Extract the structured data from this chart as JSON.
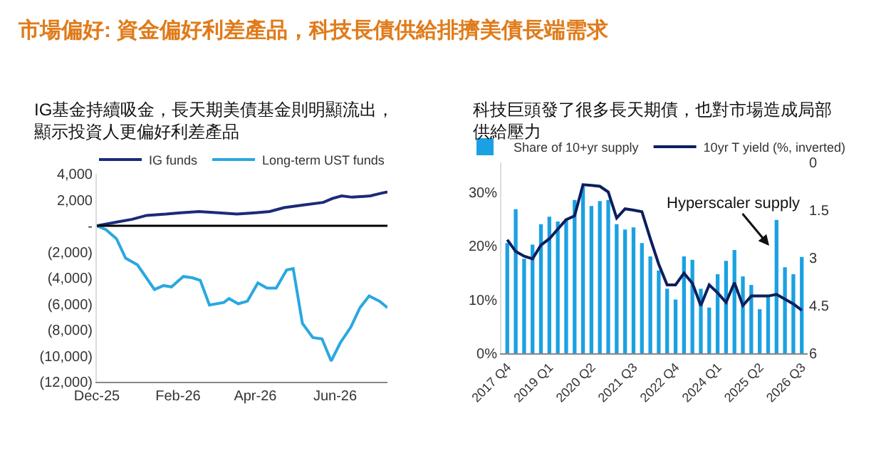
{
  "chart_data": [
    {
      "type": "other",
      "title": "市場偏好: 資金偏好利差產品，科技長債供給排擠美債長端需求"
    },
    {
      "type": "line",
      "title": "IG基金持續吸金，長天期美債基金則明顯流出，顯示投資人更偏好利差產品",
      "legend": "top",
      "xlim": [
        "2025-12-01",
        "2026-07-11"
      ],
      "xticks": [
        {
          "value": "2025-12-01",
          "label": "Dec-25"
        },
        {
          "value": "2026-02-01",
          "label": "Feb-26"
        },
        {
          "value": "2026-04-01",
          "label": "Apr-26"
        },
        {
          "value": "2026-06-01",
          "label": "Jun-26"
        }
      ],
      "ylim": [
        -12000,
        4000
      ],
      "yticks": [
        {
          "value": 4000,
          "label": "4,000"
        },
        {
          "value": 2000,
          "label": "2,000"
        },
        {
          "value": 0,
          "label": "-"
        },
        {
          "value": -2000,
          "label": "(2,000)"
        },
        {
          "value": -4000,
          "label": "(4,000)"
        },
        {
          "value": -6000,
          "label": "(6,000)"
        },
        {
          "value": -8000,
          "label": "(8,000)"
        },
        {
          "value": -10000,
          "label": "(10,000)"
        },
        {
          "value": -12000,
          "label": "(12,000)"
        }
      ],
      "ref_lines": [
        {
          "axis": "y",
          "value": 0,
          "color": "#000000"
        }
      ],
      "series": [
        {
          "name": "IG funds",
          "color": "#1b2a7a",
          "x": [
            "2025-12-01",
            "2025-12-17",
            "2025-12-28",
            "2026-01-08",
            "2026-01-23",
            "2026-02-03",
            "2026-02-17",
            "2026-03-04",
            "2026-03-18",
            "2026-04-01",
            "2026-04-12",
            "2026-04-23",
            "2026-05-08",
            "2026-05-23",
            "2026-05-30",
            "2026-06-06",
            "2026-06-14",
            "2026-06-28",
            "2026-07-06",
            "2026-07-11"
          ],
          "values": [
            0,
            300,
            500,
            800,
            900,
            1000,
            1100,
            1000,
            900,
            1000,
            1100,
            1400,
            1600,
            1800,
            2100,
            2300,
            2200,
            2300,
            2500,
            2600
          ]
        },
        {
          "name": "Long-term UST funds",
          "color": "#29a8e0",
          "x": [
            "2025-12-01",
            "2025-12-08",
            "2025-12-16",
            "2025-12-23",
            "2026-01-01",
            "2026-01-14",
            "2026-01-21",
            "2026-01-27",
            "2026-02-05",
            "2026-02-12",
            "2026-02-18",
            "2026-02-25",
            "2026-03-08",
            "2026-03-12",
            "2026-03-19",
            "2026-03-26",
            "2026-04-03",
            "2026-04-10",
            "2026-04-17",
            "2026-04-25",
            "2026-04-30",
            "2026-05-07",
            "2026-05-15",
            "2026-05-22",
            "2026-05-29",
            "2026-06-05",
            "2026-06-13",
            "2026-06-20",
            "2026-06-27",
            "2026-07-05",
            "2026-07-11"
          ],
          "values": [
            0,
            -300,
            -1000,
            -2500,
            -3000,
            -4900,
            -4600,
            -4700,
            -3900,
            -4000,
            -4200,
            -6100,
            -5900,
            -5600,
            -6000,
            -5800,
            -4400,
            -4800,
            -4800,
            -3400,
            -3300,
            -7500,
            -8600,
            -8700,
            -10400,
            -9000,
            -7800,
            -6300,
            -5400,
            -5800,
            -6300
          ]
        }
      ]
    },
    {
      "type": "bar",
      "title": "科技巨頭發了很多長天期債，也對市場造成局部供給壓力",
      "legend": "top",
      "categories": [
        "2017 Q4",
        null,
        null,
        null,
        null,
        "2019 Q1",
        null,
        null,
        null,
        null,
        "2020 Q2",
        null,
        null,
        null,
        null,
        "2021 Q3",
        null,
        null,
        null,
        null,
        "2022 Q4",
        null,
        null,
        null,
        null,
        "2024 Q1",
        null,
        null,
        null,
        null,
        "2025 Q2",
        null,
        null,
        null,
        null,
        "2026 Q3"
      ],
      "ylim": [
        0,
        35.5
      ],
      "yticks": [
        {
          "value": 0,
          "label": "0%"
        },
        {
          "value": 10,
          "label": "10%"
        },
        {
          "value": 20,
          "label": "20%"
        },
        {
          "value": 30,
          "label": "30%"
        }
      ],
      "y2lim": [
        6,
        0
      ],
      "y2ticks": [
        0,
        1.5,
        3,
        4.5,
        6
      ],
      "annotations": [
        {
          "text": "Hyperscaler supply",
          "y": 20
        }
      ],
      "series": [
        {
          "name": "Share of 10+yr supply",
          "type": "bar",
          "color": "#1ba1e2",
          "values": [
            20.5,
            26.8,
            17.6,
            20.2,
            24,
            25.4,
            24.5,
            25,
            28.5,
            31,
            27.4,
            28.3,
            28.5,
            24,
            23,
            23.4,
            20.5,
            18,
            15.4,
            12,
            10,
            18,
            17.4,
            12,
            8.5,
            14.7,
            17.2,
            19.2,
            14.3,
            12.7,
            8.2,
            10.7,
            24.8,
            16,
            14.7,
            17.9
          ]
        },
        {
          "name": "10yr T yield (%, inverted)",
          "type": "line",
          "axis": "y2",
          "color": "#0b1f5e",
          "values": [
            2.43,
            2.8,
            2.95,
            3.03,
            2.6,
            2.4,
            2.1,
            1.8,
            1.68,
            0.7,
            0.72,
            0.75,
            0.93,
            1.75,
            1.46,
            1.5,
            1.55,
            2.4,
            3.2,
            3.85,
            3.85,
            3.48,
            3.8,
            4.5,
            3.85,
            4.1,
            4.4,
            3.78,
            4.5,
            4.2,
            4.2,
            4.2,
            4.15,
            4.3,
            4.45,
            4.65
          ]
        }
      ]
    }
  ]
}
